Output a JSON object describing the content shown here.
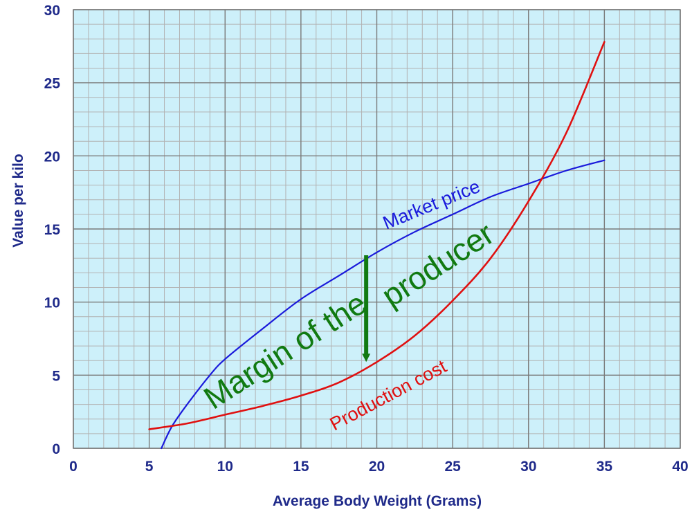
{
  "chart_data": {
    "type": "line",
    "xlabel": "Average Body Weight (Grams)",
    "ylabel": "Value per kilo",
    "xlim": [
      0,
      40
    ],
    "ylim": [
      0,
      30
    ],
    "xticks": [
      "0",
      "5",
      "10",
      "15",
      "20",
      "25",
      "30",
      "35",
      "40"
    ],
    "yticks": [
      "0",
      "5",
      "10",
      "15",
      "20",
      "25",
      "30"
    ],
    "grid": true,
    "background": "#cdf0fa",
    "series": [
      {
        "name": "Market price",
        "color": "#1a1adb",
        "x": [
          5.8,
          6.5,
          7.5,
          9,
          10,
          12.5,
          15,
          17.5,
          20,
          22.5,
          25,
          27.5,
          30,
          32.5,
          35
        ],
        "y": [
          0,
          1.5,
          3.0,
          5.0,
          6.1,
          8.2,
          10.2,
          11.8,
          13.4,
          14.8,
          16.0,
          17.2,
          18.1,
          19.0,
          19.7
        ]
      },
      {
        "name": "Production cost",
        "color": "#e01010",
        "x": [
          5,
          7.5,
          10,
          12.5,
          15,
          17.5,
          20,
          22.5,
          25,
          27.5,
          30,
          32.5,
          35
        ],
        "y": [
          1.3,
          1.7,
          2.3,
          2.9,
          3.6,
          4.5,
          5.9,
          7.7,
          10.1,
          13.0,
          16.9,
          21.6,
          27.8
        ]
      }
    ],
    "annotations": {
      "market_label": "Market price",
      "cost_label": "Production cost",
      "margin_line1": "Margin of the",
      "margin_line2": "producer",
      "margin_arrow": {
        "x": 19.3,
        "y_from": 13.2,
        "y_to": 6.0,
        "color": "#117a11"
      }
    }
  }
}
